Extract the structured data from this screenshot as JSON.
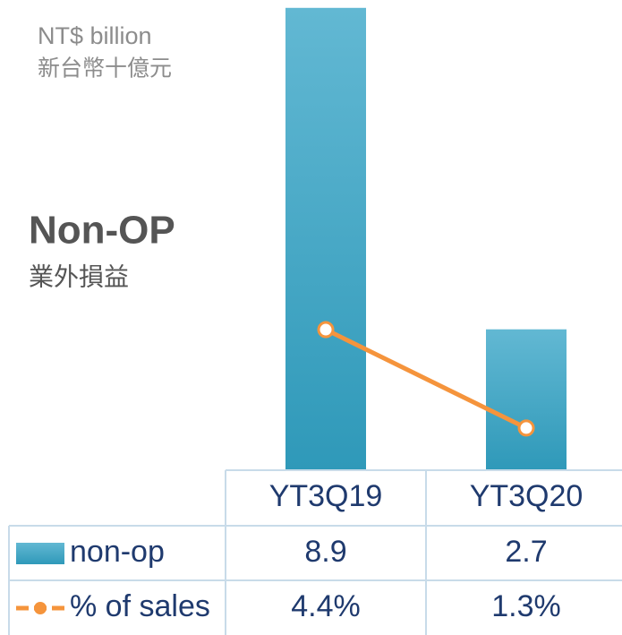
{
  "chart_data": {
    "type": "bar",
    "unit_label": "NT$ billion",
    "unit_label_zh": "新台幣十億元",
    "title": "Non-OP",
    "subtitle": "業外損益",
    "categories": [
      "YT3Q19",
      "YT3Q20"
    ],
    "series": [
      {
        "name": "non-op",
        "type": "bar",
        "color": "#3aa9c8",
        "values": [
          8.9,
          2.7
        ]
      },
      {
        "name": "% of sales",
        "type": "line",
        "axis": "y2",
        "color": "#f5943c",
        "values": [
          4.4,
          1.3
        ],
        "value_labels": [
          "4.4%",
          "1.3%"
        ]
      }
    ],
    "ylim": [
      0,
      9
    ],
    "y2lim": [
      0,
      14.7
    ]
  }
}
